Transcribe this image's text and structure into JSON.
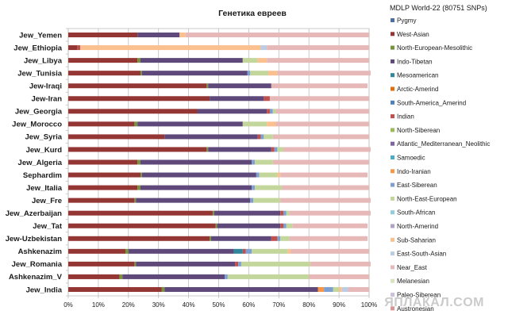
{
  "chart_data": {
    "type": "bar",
    "stacked": true,
    "orientation": "horizontal",
    "title": "Генетика евреев",
    "legend_title": "MDLP World-22 (80751 SNPs)",
    "xlim": [
      0,
      100
    ],
    "x_ticks": [
      "0%",
      "10%",
      "20%",
      "30%",
      "40%",
      "50%",
      "60%",
      "70%",
      "80%",
      "90%",
      "100%"
    ],
    "grid": true,
    "legend_position": "right",
    "categories": [
      "Jew_Yemen",
      "Jew_Ethiopia",
      "Jew_Libya",
      "Jew_Tunisia",
      "Jew-Iraqi",
      "Jew-Iran",
      "Jew_Georgia",
      "Jew_Morocco",
      "Jew_Syria",
      "Jew_Kurd",
      "Jew_Algeria",
      "Sephardim",
      "Jew_Italia",
      "Jew_Fre",
      "Jew_Azerbaijan",
      "Jew_Tat",
      "Jew-Uzbekistan",
      "Ashkenazim",
      "Jew_Romania",
      "Ashkenazim_V",
      "Jew_India"
    ],
    "series": [
      {
        "name": "Pygmy",
        "color": "#4a6fa5",
        "values": [
          0,
          0,
          0,
          0,
          0,
          0,
          0,
          0,
          0,
          0,
          0,
          0,
          0,
          0,
          0,
          0,
          0,
          0,
          0,
          0,
          0
        ]
      },
      {
        "name": "West-Asian",
        "color": "#943634",
        "values": [
          23,
          3,
          23,
          24,
          46,
          47,
          43,
          22,
          32,
          46,
          23,
          24,
          23,
          22,
          48,
          49,
          47,
          19,
          22,
          17,
          31
        ]
      },
      {
        "name": "North-European-Mesolithic",
        "color": "#77933c",
        "values": [
          0,
          0,
          1,
          0.5,
          0.5,
          0,
          0,
          1,
          0,
          0.5,
          1,
          0.5,
          1,
          0.5,
          0.5,
          0.5,
          0.5,
          1,
          0.5,
          1,
          1
        ]
      },
      {
        "name": "Indo-Tibetan",
        "color": "#5f497a",
        "values": [
          14,
          0,
          34,
          35,
          21,
          18,
          23,
          35,
          31,
          21,
          37,
          38,
          37,
          38,
          22,
          21,
          20,
          35,
          33,
          34,
          51
        ]
      },
      {
        "name": "Mesoamerican",
        "color": "#31859c",
        "values": [
          0,
          0,
          0,
          0,
          0,
          0,
          0,
          0,
          0,
          0,
          0,
          0,
          0,
          0,
          0,
          0,
          0,
          3,
          0,
          0,
          0
        ]
      },
      {
        "name": "Arctic-Amerind",
        "color": "#e46c0a",
        "values": [
          0,
          0,
          0,
          0,
          0,
          0,
          0,
          0,
          0,
          0,
          0,
          0,
          0,
          0,
          0,
          0,
          0,
          0,
          0,
          0,
          0
        ]
      },
      {
        "name": "South-America_Amerind",
        "color": "#4f81bd",
        "values": [
          0,
          0,
          0,
          0,
          0,
          0,
          0,
          0,
          0,
          0,
          0,
          0,
          0,
          0,
          0,
          0,
          0,
          0,
          0,
          0,
          0
        ]
      },
      {
        "name": "Indian",
        "color": "#c0504d",
        "values": [
          0,
          1,
          0,
          0,
          0,
          2,
          1,
          0,
          1,
          1,
          0,
          0,
          0,
          0,
          1,
          1,
          2,
          1,
          1,
          0,
          0
        ]
      },
      {
        "name": "North-Siberean",
        "color": "#9bbb59",
        "values": [
          0,
          0,
          0,
          0,
          0,
          0,
          0,
          0,
          0,
          0,
          0,
          0,
          0,
          0,
          0,
          0,
          0,
          0,
          0,
          0,
          0
        ]
      },
      {
        "name": "Atlantic_Mediterranean_Neolithic",
        "color": "#8064a2",
        "values": [
          0,
          0,
          0,
          0,
          0,
          0,
          0,
          0,
          0,
          0,
          0,
          0,
          0,
          0,
          0,
          0,
          0,
          0,
          0,
          0,
          0
        ]
      },
      {
        "name": "Samoedic",
        "color": "#4bacc6",
        "values": [
          0,
          0,
          0,
          0,
          0,
          0,
          0,
          0,
          0,
          0,
          0,
          0,
          0,
          0,
          0,
          0,
          0,
          0,
          0,
          0,
          0
        ]
      },
      {
        "name": "Indo-Iranian",
        "color": "#f79646",
        "values": [
          0,
          0,
          0,
          0,
          0,
          0,
          0,
          0,
          0,
          0,
          0,
          0,
          0,
          0,
          0,
          0,
          0,
          0,
          0,
          0,
          2
        ]
      },
      {
        "name": "East-Siberean",
        "color": "#7f9fd1",
        "values": [
          0,
          0,
          0,
          1,
          0,
          0,
          1,
          0,
          1,
          1,
          1,
          1,
          1,
          1,
          1,
          1,
          1,
          2,
          1,
          1,
          3
        ]
      },
      {
        "name": "North-East-European",
        "color": "#c3d69b",
        "values": [
          0,
          0,
          5,
          6,
          0,
          0,
          1,
          8,
          3,
          2,
          6,
          6,
          9,
          9,
          1,
          2,
          3,
          12,
          23,
          27,
          2
        ]
      },
      {
        "name": "South-African",
        "color": "#92cddc",
        "values": [
          0,
          0,
          0,
          0,
          0,
          0,
          0,
          0,
          0,
          0,
          0,
          0,
          0,
          0,
          0,
          0,
          0,
          0,
          0,
          0,
          0
        ]
      },
      {
        "name": "North-Amerind",
        "color": "#b2a2c7",
        "values": [
          0,
          0,
          0,
          0,
          0,
          0,
          0,
          0,
          0,
          0,
          0,
          0,
          0,
          0,
          0,
          0,
          0,
          0,
          0,
          0,
          0
        ]
      },
      {
        "name": "Sub-Saharian",
        "color": "#fac090",
        "values": [
          2,
          60,
          3,
          3,
          0,
          0,
          0,
          3,
          0,
          0,
          0,
          1,
          0,
          0,
          0,
          0,
          0,
          1,
          0,
          0,
          1
        ]
      },
      {
        "name": "East-South-Asian",
        "color": "#b9cde5",
        "values": [
          0,
          2,
          0,
          0,
          0,
          0,
          0,
          0,
          0,
          0,
          0,
          0,
          0,
          0,
          0,
          0,
          0,
          0,
          0,
          0,
          2
        ]
      },
      {
        "name": "Near_East",
        "color": "#e6b9b8",
        "values": [
          61,
          34,
          34,
          31,
          32,
          33,
          31,
          31,
          32,
          29,
          32,
          29,
          29,
          30,
          27,
          25,
          26,
          26,
          20,
          20,
          7
        ]
      },
      {
        "name": "Melanesian",
        "color": "#d7e4bd",
        "values": [
          0,
          0,
          0,
          0,
          0,
          0,
          0,
          0,
          0,
          0,
          0,
          0,
          0,
          0,
          0,
          0,
          0,
          0,
          0,
          0,
          0
        ]
      },
      {
        "name": "Paleo-Siberean",
        "color": "#ccc1da",
        "values": [
          0,
          0,
          0,
          0,
          0,
          0,
          0,
          0,
          0,
          0,
          0,
          0,
          0,
          0,
          0,
          0,
          0,
          0,
          0,
          0,
          0
        ]
      },
      {
        "name": "Austronesian",
        "color": "#d99694",
        "values": [
          0,
          0,
          0,
          0,
          0,
          0,
          0,
          0,
          0,
          0,
          0,
          0,
          0,
          0,
          0,
          0,
          0,
          0,
          0,
          0,
          0
        ]
      }
    ]
  },
  "watermark": "ЯПЛАКАЛ.COM"
}
